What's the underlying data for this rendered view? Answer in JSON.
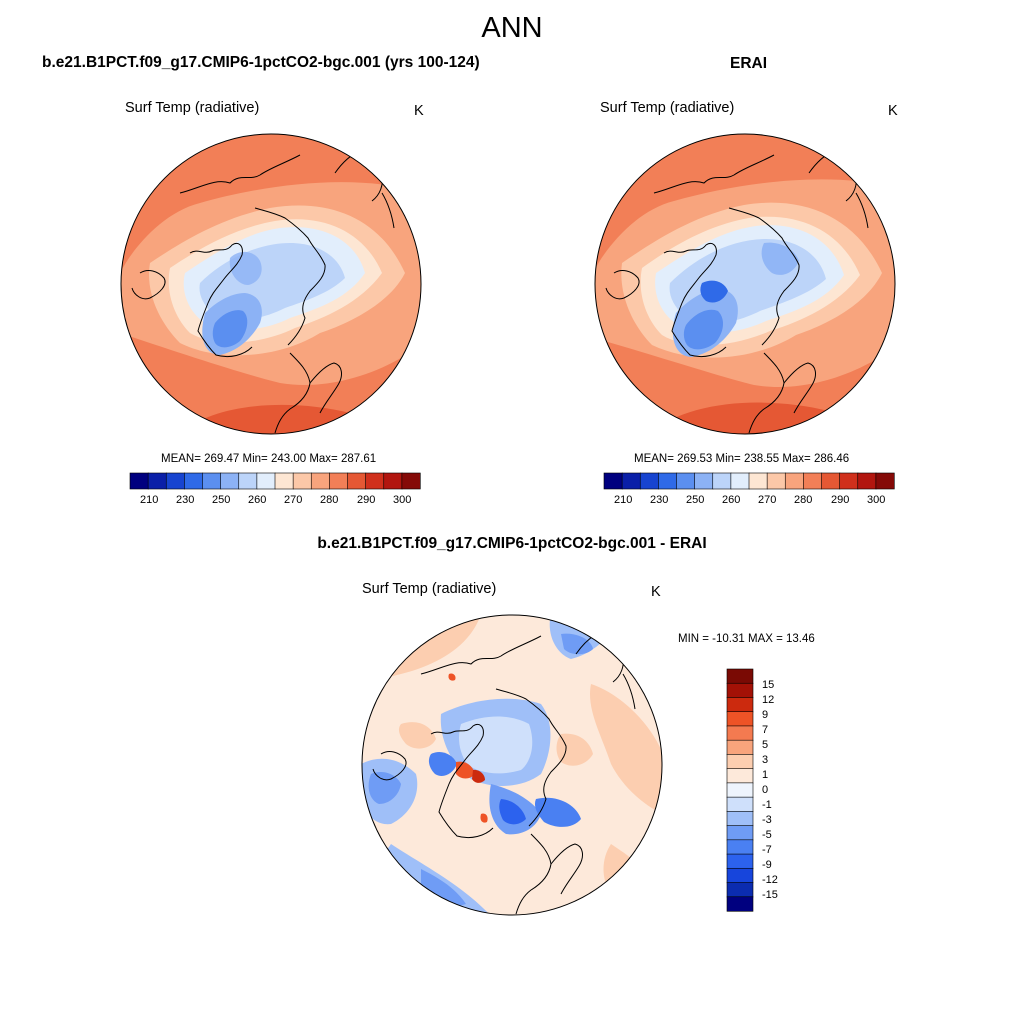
{
  "figure": {
    "title": "ANN",
    "colors": {
      "abs_scale": [
        "#00007f",
        "#0a1fa8",
        "#1744d0",
        "#2f6ae8",
        "#5b8ff0",
        "#8cb2f5",
        "#bcd4f9",
        "#e2eefc",
        "#fde6d3",
        "#fcc8a8",
        "#f8a47d",
        "#f27f57",
        "#e55834",
        "#d0301c",
        "#b2160f",
        "#850a08"
      ],
      "diff_scale": [
        "#00007f",
        "#0b2cb0",
        "#1745dc",
        "#2c62ee",
        "#4a80f2",
        "#6f9cf5",
        "#9fbff8",
        "#cfe0fb",
        "#eef4fd",
        "#fde9da",
        "#fcceb0",
        "#f8a47c",
        "#f47a50",
        "#ee5326",
        "#cc2a0e",
        "#a31106",
        "#7a0a04"
      ]
    }
  },
  "panels": {
    "model": {
      "title": "b.e21.B1PCT.f09_g17.CMIP6-1pctCO2-bgc.001 (yrs 100-124)",
      "variable": "Surf Temp (radiative)",
      "units": "K",
      "stats": "MEAN= 269.47  Min= 243.00  Max= 287.61",
      "colorbar_ticks": [
        "210",
        "230",
        "250",
        "260",
        "270",
        "280",
        "290",
        "300"
      ]
    },
    "obs": {
      "title": "ERAI",
      "variable": "Surf Temp (radiative)",
      "units": "K",
      "stats": "MEAN= 269.53  Min= 238.55  Max= 286.46",
      "colorbar_ticks": [
        "210",
        "230",
        "250",
        "260",
        "270",
        "280",
        "290",
        "300"
      ]
    },
    "diff": {
      "title": "b.e21.B1PCT.f09_g17.CMIP6-1pctCO2-bgc.001 - ERAI",
      "variable": "Surf Temp (radiative)",
      "units": "K",
      "stats": "MIN = -10.31 MAX =  13.46",
      "colorbar_ticks": [
        "15",
        "12",
        "9",
        "7",
        "5",
        "3",
        "1",
        "0",
        "-1",
        "-3",
        "-5",
        "-7",
        "-9",
        "-12",
        "-15"
      ]
    }
  }
}
